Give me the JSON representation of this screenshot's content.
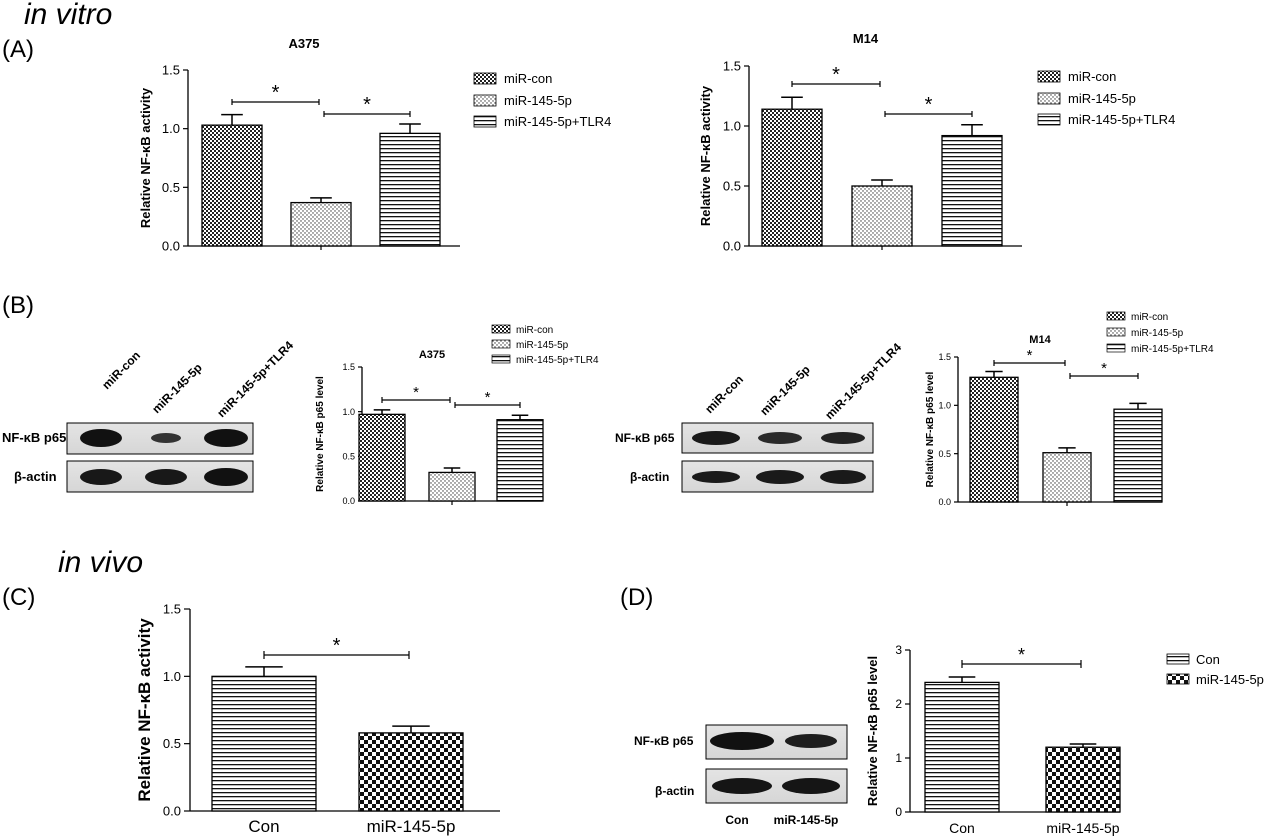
{
  "sections": {
    "in_vitro": "in vitro",
    "in_vivo": "in vivo",
    "a": "(A)",
    "b": "(B)",
    "c": "(C)",
    "d": "(D)"
  },
  "legend3": [
    "miR-con",
    "miR-145-5p",
    "miR-145-5p+TLR4"
  ],
  "legend2": [
    "Con",
    "miR-145-5p"
  ],
  "blots": {
    "b1": {
      "lanes": [
        "miR-con",
        "miR-145-5p",
        "miR-145-5p+TLR4"
      ],
      "rows": [
        "NF-κB p65",
        "β-actin"
      ]
    },
    "b2": {
      "lanes": [
        "miR-con",
        "miR-145-5p",
        "miR-145-5p+TLR4"
      ],
      "rows": [
        "NF-κB p65",
        "β-actin"
      ]
    },
    "d": {
      "lanes": [
        "Con",
        "miR-145-5p"
      ],
      "rows": [
        "NF-κB p65",
        "β-actin"
      ]
    }
  },
  "sig_mark": "*",
  "chart_data": [
    {
      "id": "A1",
      "type": "bar",
      "title": "A375",
      "ylabel": "Relative NF-κB activity",
      "ylim": [
        0,
        1.5
      ],
      "yticks": [
        "0.0",
        "0.5",
        "1.0",
        "1.5"
      ],
      "categories": [
        "miR-con",
        "miR-145-5p",
        "miR-145-5p+TLR4"
      ],
      "values": [
        1.03,
        0.37,
        0.96
      ],
      "errors": [
        0.09,
        0.04,
        0.08
      ],
      "sig": [
        [
          0,
          1
        ],
        [
          1,
          2
        ]
      ]
    },
    {
      "id": "A2",
      "type": "bar",
      "title": "M14",
      "ylabel": "Relative NF-κB activity",
      "ylim": [
        0,
        1.5
      ],
      "yticks": [
        "0.0",
        "0.5",
        "1.0",
        "1.5"
      ],
      "categories": [
        "miR-con",
        "miR-145-5p",
        "miR-145-5p+TLR4"
      ],
      "values": [
        1.14,
        0.5,
        0.92
      ],
      "errors": [
        0.1,
        0.05,
        0.09
      ],
      "sig": [
        [
          0,
          1
        ],
        [
          1,
          2
        ]
      ]
    },
    {
      "id": "B1",
      "type": "bar",
      "title": "A375",
      "ylabel": "Relative NF-κB p65 level",
      "ylim": [
        0,
        1.5
      ],
      "yticks": [
        "0.0",
        "0.5",
        "1.0",
        "1.5"
      ],
      "categories": [
        "miR-con",
        "miR-145-5p",
        "miR-145-5p+TLR4"
      ],
      "values": [
        0.97,
        0.32,
        0.91
      ],
      "errors": [
        0.05,
        0.05,
        0.05
      ],
      "sig": [
        [
          0,
          1
        ],
        [
          1,
          2
        ]
      ]
    },
    {
      "id": "B2",
      "type": "bar",
      "title": "M14",
      "ylabel": "Relative NF-κB p65 level",
      "ylim": [
        0,
        1.5
      ],
      "yticks": [
        "0.0",
        "0.5",
        "1.0",
        "1.5"
      ],
      "categories": [
        "miR-con",
        "miR-145-5p",
        "miR-145-5p+TLR4"
      ],
      "values": [
        1.29,
        0.51,
        0.96
      ],
      "errors": [
        0.06,
        0.05,
        0.06
      ],
      "sig": [
        [
          0,
          1
        ],
        [
          1,
          2
        ]
      ]
    },
    {
      "id": "C",
      "type": "bar",
      "title": "",
      "ylabel": "Relative NF-κB activity",
      "ylim": [
        0,
        1.5
      ],
      "yticks": [
        "0.0",
        "0.5",
        "1.0",
        "1.5"
      ],
      "categories": [
        "Con",
        "miR-145-5p"
      ],
      "values": [
        1.0,
        0.58
      ],
      "errors": [
        0.07,
        0.05
      ],
      "sig": [
        [
          0,
          1
        ]
      ]
    },
    {
      "id": "D",
      "type": "bar",
      "title": "",
      "ylabel": "Relative NF-κB p65 level",
      "ylim": [
        0,
        3
      ],
      "yticks": [
        "0",
        "1",
        "2",
        "3"
      ],
      "categories": [
        "Con",
        "miR-145-5p"
      ],
      "values": [
        2.4,
        1.2
      ],
      "errors": [
        0.1,
        0.06
      ],
      "sig": [
        [
          0,
          1
        ]
      ]
    }
  ]
}
